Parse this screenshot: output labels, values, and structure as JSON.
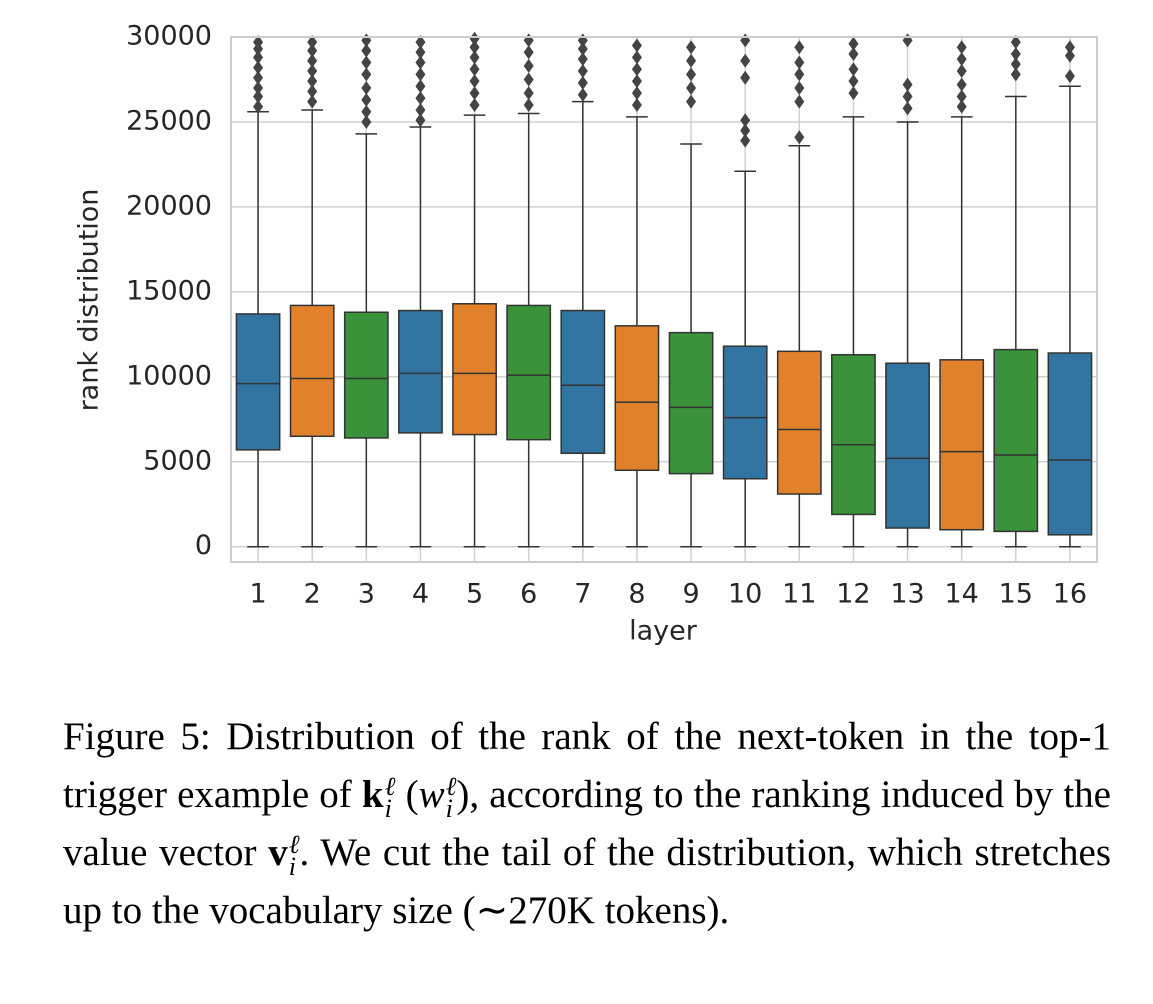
{
  "chart_data": {
    "type": "box",
    "xlabel": "layer",
    "ylabel": "rank distribution",
    "categories": [
      "1",
      "2",
      "3",
      "4",
      "5",
      "6",
      "7",
      "8",
      "9",
      "10",
      "11",
      "12",
      "13",
      "14",
      "15",
      "16"
    ],
    "boxes": [
      {
        "color": "#3274a1",
        "min": 0,
        "q1": 5700,
        "median": 9600,
        "q3": 13700,
        "max": 25600,
        "outliers": [
          25900,
          26500,
          27000,
          27600,
          28200,
          28800,
          29300,
          29700
        ]
      },
      {
        "color": "#e1812c",
        "min": 0,
        "q1": 6500,
        "median": 9900,
        "q3": 14200,
        "max": 25700,
        "outliers": [
          26200,
          26800,
          27400,
          28000,
          28600,
          29200,
          29700
        ]
      },
      {
        "color": "#3a923a",
        "min": 0,
        "q1": 6400,
        "median": 9900,
        "q3": 13800,
        "max": 24300,
        "outliers": [
          25000,
          25600,
          26300,
          27000,
          27800,
          28500,
          29200,
          29800
        ]
      },
      {
        "color": "#3274a1",
        "min": 0,
        "q1": 6700,
        "median": 10200,
        "q3": 13900,
        "max": 24700,
        "outliers": [
          25100,
          25700,
          26400,
          27100,
          27800,
          28500,
          29100,
          29700
        ]
      },
      {
        "color": "#e1812c",
        "min": 0,
        "q1": 6600,
        "median": 10200,
        "q3": 14300,
        "max": 25400,
        "outliers": [
          26000,
          26700,
          27400,
          28100,
          28800,
          29400,
          29900
        ]
      },
      {
        "color": "#3a923a",
        "min": 0,
        "q1": 6300,
        "median": 10100,
        "q3": 14200,
        "max": 25500,
        "outliers": [
          26000,
          26700,
          27500,
          28300,
          29100,
          29800
        ]
      },
      {
        "color": "#3274a1",
        "min": 0,
        "q1": 5500,
        "median": 9500,
        "q3": 13900,
        "max": 26200,
        "outliers": [
          26600,
          27300,
          28000,
          28700,
          29300,
          29800
        ]
      },
      {
        "color": "#e1812c",
        "min": 0,
        "q1": 4500,
        "median": 8500,
        "q3": 13000,
        "max": 25300,
        "outliers": [
          26000,
          26700,
          27400,
          28100,
          28800,
          29500
        ]
      },
      {
        "color": "#3a923a",
        "min": 0,
        "q1": 4300,
        "median": 8200,
        "q3": 12600,
        "max": 23700,
        "outliers": [
          26200,
          27000,
          27800,
          28600,
          29400
        ]
      },
      {
        "color": "#3274a1",
        "min": 0,
        "q1": 4000,
        "median": 7600,
        "q3": 11800,
        "max": 22100,
        "outliers": [
          23900,
          24500,
          25100,
          27600,
          28600,
          29800
        ]
      },
      {
        "color": "#e1812c",
        "min": 0,
        "q1": 3100,
        "median": 6900,
        "q3": 11500,
        "max": 23600,
        "outliers": [
          24100,
          26200,
          27000,
          27800,
          28500,
          29400
        ]
      },
      {
        "color": "#3a923a",
        "min": 0,
        "q1": 1900,
        "median": 6000,
        "q3": 11300,
        "max": 25300,
        "outliers": [
          26700,
          27400,
          28100,
          29000,
          29600
        ]
      },
      {
        "color": "#3274a1",
        "min": 0,
        "q1": 1100,
        "median": 5200,
        "q3": 10800,
        "max": 25000,
        "outliers": [
          25800,
          26500,
          27200,
          29800
        ]
      },
      {
        "color": "#e1812c",
        "min": 0,
        "q1": 1000,
        "median": 5600,
        "q3": 11000,
        "max": 25300,
        "outliers": [
          25900,
          26500,
          27200,
          28000,
          28700,
          29400
        ]
      },
      {
        "color": "#3a923a",
        "min": 0,
        "q1": 900,
        "median": 5400,
        "q3": 11600,
        "max": 26500,
        "outliers": [
          27800,
          28400,
          29000,
          29700
        ]
      },
      {
        "color": "#3274a1",
        "min": 0,
        "q1": 700,
        "median": 5100,
        "q3": 11400,
        "max": 27100,
        "outliers": [
          27700,
          28900,
          29400
        ]
      }
    ],
    "ylim": [
      -900,
      30000
    ],
    "yticks": [
      0,
      5000,
      10000,
      15000,
      20000,
      25000,
      30000
    ],
    "grid": true,
    "outlier_color": "#444444"
  },
  "caption": {
    "label": "Figure 5:",
    "parts": [
      " Distribution of the rank of the next-token in the top-1 trigger example of ",
      {
        "base": "k",
        "style": "bold",
        "sup": "ℓ",
        "sub": "i"
      },
      " (",
      {
        "base": "w",
        "style": "italic",
        "sup": "ℓ",
        "sub": "i"
      },
      "), according to the ranking induced by the value vector ",
      {
        "base": "v",
        "style": "bold",
        "sup": "ℓ",
        "sub": "i"
      },
      ". We cut the tail of the distribution, which stretches up to the vocabulary size (∼270K tokens)."
    ]
  }
}
